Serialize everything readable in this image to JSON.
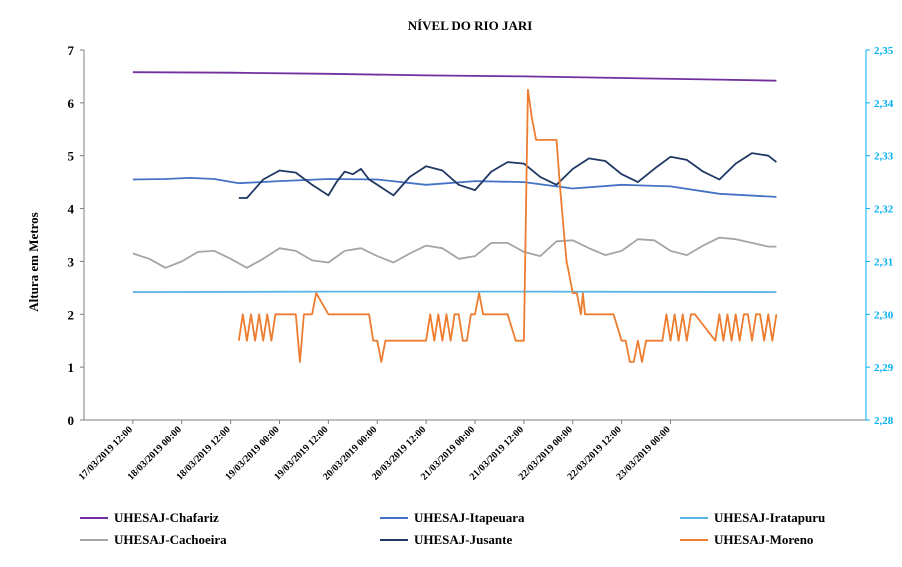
{
  "chart_data": {
    "type": "line",
    "title": "NÍVEL DO RIO JARI",
    "ylabel": "Altura  em Metros",
    "xlabel": "",
    "ylim": [
      0,
      7
    ],
    "yticks": [
      "0",
      "1",
      "2",
      "3",
      "4",
      "5",
      "6",
      "7"
    ],
    "y2_ticks": [
      "2,28",
      "2,29",
      "2,30",
      "2,31",
      "2,32",
      "2,33",
      "2,34",
      "2,35"
    ],
    "y2_tick_color": "#00b0f0",
    "x_ticks": [
      "17/03/2019 12:00",
      "18/03/2019 00:00",
      "18/03/2019 12:00",
      "19/03/2019 00:00",
      "19/03/2019 12:00",
      "20/03/2019 00:00",
      "20/03/2019 12:00",
      "21/03/2019 00:00",
      "21/03/2019 12:00",
      "22/03/2019 00:00",
      "22/03/2019 12:00",
      "23/03/2019 00:00"
    ],
    "x_unit_note": "x values are hours after 17/03/2019 00:00",
    "legend_position": "bottom",
    "series": [
      {
        "name": "UHESAJ-Chafariz",
        "color": "#7030a0",
        "x": [
          12,
          36,
          60,
          84,
          108,
          132,
          156,
          170
        ],
        "y": [
          6.58,
          6.57,
          6.55,
          6.52,
          6.5,
          6.47,
          6.44,
          6.42
        ]
      },
      {
        "name": "UHESAJ-Itapeuara",
        "color": "#4472c4",
        "x": [
          12,
          20,
          26,
          32,
          38,
          48,
          60,
          72,
          84,
          96,
          108,
          120,
          132,
          144,
          156,
          170
        ],
        "y": [
          4.55,
          4.56,
          4.58,
          4.56,
          4.48,
          4.52,
          4.56,
          4.55,
          4.45,
          4.52,
          4.5,
          4.38,
          4.45,
          4.42,
          4.28,
          4.22
        ]
      },
      {
        "name": "UHESAJ-Iratapuru",
        "color": "#5ab4e6",
        "x": [
          12,
          60,
          108,
          170
        ],
        "y": [
          2.42,
          2.43,
          2.43,
          2.42
        ]
      },
      {
        "name": "UHESAJ-Cachoeira",
        "color": "#a5a5a5",
        "x": [
          12,
          16,
          20,
          24,
          28,
          32,
          36,
          40,
          44,
          48,
          52,
          56,
          60,
          64,
          68,
          72,
          76,
          80,
          84,
          88,
          92,
          96,
          100,
          104,
          108,
          112,
          116,
          120,
          124,
          128,
          132,
          136,
          140,
          144,
          148,
          152,
          156,
          160,
          164,
          168,
          170
        ],
        "y": [
          3.15,
          3.05,
          2.88,
          3.0,
          3.18,
          3.2,
          3.05,
          2.88,
          3.05,
          3.25,
          3.2,
          3.02,
          2.98,
          3.2,
          3.25,
          3.1,
          2.98,
          3.15,
          3.3,
          3.25,
          3.05,
          3.1,
          3.35,
          3.35,
          3.18,
          3.1,
          3.38,
          3.4,
          3.25,
          3.12,
          3.2,
          3.42,
          3.4,
          3.2,
          3.12,
          3.3,
          3.45,
          3.42,
          3.35,
          3.28,
          3.28
        ]
      },
      {
        "name": "UHESAJ-Jusante",
        "color": "#203864",
        "x": [
          38,
          40,
          44,
          48,
          52,
          56,
          60,
          62,
          64,
          66,
          68,
          70,
          72,
          76,
          80,
          84,
          88,
          92,
          96,
          100,
          104,
          108,
          112,
          116,
          120,
          124,
          128,
          132,
          136,
          140,
          144,
          148,
          152,
          156,
          160,
          164,
          168,
          170
        ],
        "y": [
          4.2,
          4.2,
          4.55,
          4.72,
          4.68,
          4.45,
          4.25,
          4.5,
          4.7,
          4.65,
          4.75,
          4.55,
          4.45,
          4.25,
          4.6,
          4.8,
          4.72,
          4.45,
          4.35,
          4.7,
          4.88,
          4.85,
          4.6,
          4.45,
          4.75,
          4.95,
          4.9,
          4.65,
          4.5,
          4.75,
          4.98,
          4.92,
          4.7,
          4.55,
          4.85,
          5.05,
          5.0,
          4.88
        ]
      },
      {
        "name": "UHESAJ-Moreno",
        "color": "#ed7d31",
        "x": [
          38,
          39,
          40,
          41,
          42,
          43,
          44,
          45,
          46,
          47,
          48,
          52,
          53,
          54,
          55,
          56,
          57,
          60,
          64,
          70,
          71,
          72,
          73,
          74,
          75,
          80,
          84,
          85,
          86,
          87,
          88,
          89,
          90,
          91,
          92,
          93,
          94,
          95,
          96,
          97,
          98,
          104,
          106,
          107,
          107.5,
          108,
          109,
          110,
          111,
          115,
          116,
          117,
          118,
          118.5,
          119,
          120,
          121,
          122,
          122.5,
          123,
          124,
          125,
          126,
          130,
          132,
          133,
          134,
          135,
          136,
          137,
          138,
          140,
          142,
          143,
          144,
          145,
          146,
          147,
          148,
          149,
          150,
          155,
          156,
          157,
          158,
          159,
          160,
          161,
          162,
          163,
          164,
          165,
          166,
          167,
          168,
          169,
          170
        ],
        "y": [
          1.5,
          2.0,
          1.5,
          2.0,
          1.5,
          2.0,
          1.5,
          2.0,
          1.5,
          2.0,
          2.0,
          2.0,
          1.1,
          2.0,
          2.0,
          2.0,
          2.4,
          2.0,
          2.0,
          2.0,
          1.5,
          1.5,
          1.1,
          1.5,
          1.5,
          1.5,
          1.5,
          2.0,
          1.5,
          2.0,
          1.5,
          2.0,
          1.5,
          2.0,
          2.0,
          1.5,
          1.5,
          2.0,
          2.0,
          2.4,
          2.0,
          2.0,
          1.5,
          1.5,
          1.5,
          1.5,
          6.25,
          5.7,
          5.3,
          5.3,
          5.3,
          4.3,
          3.4,
          3.0,
          2.8,
          2.4,
          2.4,
          2.0,
          2.4,
          2.0,
          2.0,
          2.0,
          2.0,
          2.0,
          1.5,
          1.5,
          1.1,
          1.1,
          1.5,
          1.1,
          1.5,
          1.5,
          1.5,
          2.0,
          1.5,
          2.0,
          1.5,
          2.0,
          1.5,
          2.0,
          2.0,
          1.5,
          2.0,
          1.5,
          2.0,
          1.5,
          2.0,
          1.5,
          2.0,
          2.0,
          1.5,
          2.0,
          2.0,
          1.5,
          2.0,
          1.5,
          2.0
        ]
      }
    ]
  }
}
